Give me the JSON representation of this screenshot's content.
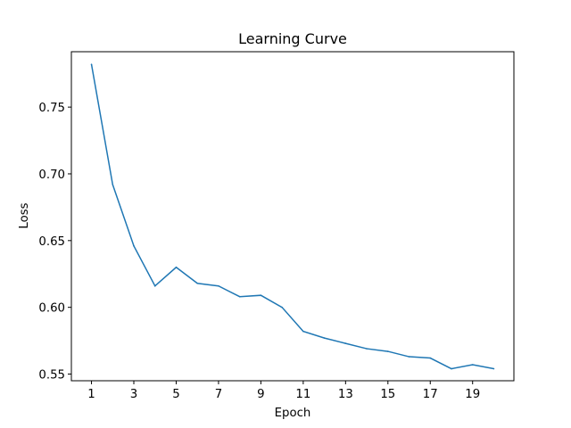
{
  "chart_data": {
    "type": "line",
    "title": "Learning Curve",
    "xlabel": "Epoch",
    "ylabel": "Loss",
    "xlim": [
      0.05,
      20.95
    ],
    "ylim": [
      0.545,
      0.7915
    ],
    "grid": false,
    "x": [
      1,
      2,
      3,
      4,
      5,
      6,
      7,
      8,
      9,
      10,
      11,
      12,
      13,
      14,
      15,
      16,
      17,
      18,
      19,
      20
    ],
    "x_ticks": [
      1,
      3,
      5,
      7,
      9,
      11,
      13,
      15,
      17,
      19
    ],
    "y_ticks": [
      0.55,
      0.6,
      0.65,
      0.7,
      0.75
    ],
    "y_tick_labels": [
      "0.55",
      "0.60",
      "0.65",
      "0.70",
      "0.75"
    ],
    "series": [
      {
        "values": [
          0.782,
          0.692,
          0.646,
          0.616,
          0.63,
          0.618,
          0.616,
          0.608,
          0.609,
          0.6,
          0.582,
          0.577,
          0.573,
          0.569,
          0.567,
          0.563,
          0.562,
          0.554,
          0.557,
          0.554
        ]
      }
    ],
    "colors": {
      "line": "#1f77b4",
      "ylabel": "#1f77b4",
      "axes": "#000000"
    }
  }
}
